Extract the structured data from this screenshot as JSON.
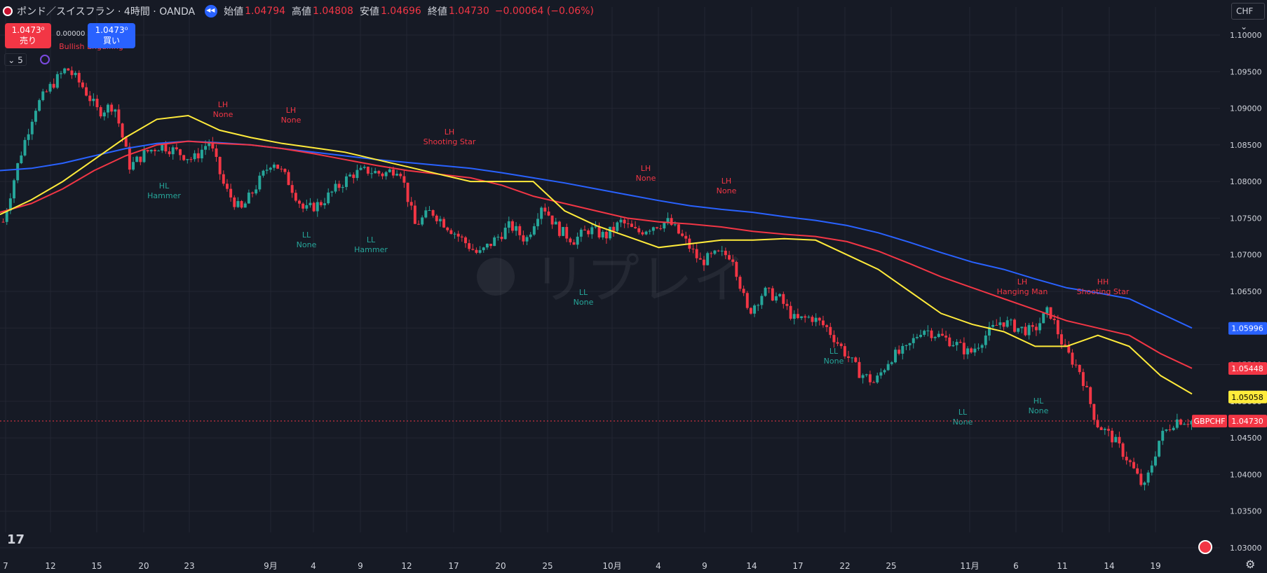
{
  "header": {
    "symbol": "ポンド／スイスフラン · 4時間 · OANDA",
    "open_label": "始値",
    "open": "1.04794",
    "high_label": "高値",
    "high": "1.04808",
    "low_label": "安値",
    "low": "1.04696",
    "close_label": "終値",
    "close": "1.04730",
    "change": "−0.00064 (−0.06%)"
  },
  "trade": {
    "sell_price": "1.0473⁰",
    "sell_label": "売り",
    "spread": "0.00000",
    "buy_price": "1.0473⁰",
    "buy_label": "買い"
  },
  "indicator_toggle": "5",
  "currency": "CHF",
  "watermark": "リプレイ",
  "price_axis": {
    "ticks": [
      "1.10000",
      "1.09500",
      "1.09000",
      "1.08500",
      "1.08000",
      "1.07500",
      "1.07000",
      "1.06500",
      "1.06000",
      "1.05500",
      "1.05000",
      "1.04500",
      "1.04000",
      "1.03500",
      "1.03000"
    ],
    "labels": [
      {
        "text": "1.05996",
        "value": 1.05996,
        "bg": "#2962ff",
        "fg": "#ffffff"
      },
      {
        "text": "1.05448",
        "value": 1.05448,
        "bg": "#f23645",
        "fg": "#ffffff"
      },
      {
        "text": "1.05058",
        "value": 1.05058,
        "bg": "#ffeb3b",
        "fg": "#000000"
      },
      {
        "text": "1.04730",
        "value": 1.0473,
        "bg": "#f23645",
        "fg": "#ffffff"
      }
    ],
    "symbol_tag": "GBPCHF"
  },
  "time_axis": {
    "labels": [
      "7",
      "12",
      "15",
      "20",
      "23",
      "9月",
      "4",
      "9",
      "12",
      "17",
      "20",
      "25",
      "10月",
      "4",
      "9",
      "14",
      "17",
      "22",
      "25",
      "11月",
      "6",
      "11",
      "14",
      "19"
    ]
  },
  "patterns": [
    {
      "lines": [
        "Bullish Engulfing"
      ],
      "color": "#f23645"
    },
    {
      "lines": [
        "LH",
        "None"
      ],
      "color": "#f23645"
    },
    {
      "lines": [
        "LH",
        "None"
      ],
      "color": "#f23645"
    },
    {
      "lines": [
        "LH",
        "Shooting Star"
      ],
      "color": "#f23645"
    },
    {
      "lines": [
        "LH",
        "None"
      ],
      "color": "#f23645"
    },
    {
      "lines": [
        "LH",
        "None"
      ],
      "color": "#f23645"
    },
    {
      "lines": [
        "LH",
        "Hanging Man"
      ],
      "color": "#f23645"
    },
    {
      "lines": [
        "HH",
        "Shooting Star"
      ],
      "color": "#f23645"
    },
    {
      "lines": [
        "HL",
        "Hammer"
      ],
      "color": "#26a69a"
    },
    {
      "lines": [
        "LL",
        "None"
      ],
      "color": "#26a69a"
    },
    {
      "lines": [
        "LL",
        "Hammer"
      ],
      "color": "#26a69a"
    },
    {
      "lines": [
        "LL",
        "None"
      ],
      "color": "#26a69a"
    },
    {
      "lines": [
        "LL",
        "None"
      ],
      "color": "#26a69a"
    },
    {
      "lines": [
        "LL",
        "None"
      ],
      "color": "#26a69a"
    },
    {
      "lines": [
        "HL",
        "None"
      ],
      "color": "#26a69a"
    }
  ],
  "colors": {
    "background": "#161a25",
    "grid": "#232632",
    "up": "#26a69a",
    "down": "#f23645",
    "ma_fast": "#ffeb3b",
    "ma_mid": "#f23645",
    "ma_slow": "#2962ff"
  },
  "chart_data": {
    "type": "candlestick",
    "ylim": [
      1.03,
      1.1
    ],
    "moving_averages": {
      "ma_fast": [
        1.0755,
        1.0775,
        1.08,
        1.083,
        1.086,
        1.0885,
        1.089,
        1.087,
        1.086,
        1.0852,
        1.0846,
        1.084,
        1.083,
        1.082,
        1.081,
        1.08,
        1.08,
        1.08,
        1.076,
        1.074,
        1.0725,
        1.071,
        1.0715,
        1.072,
        1.072,
        1.0722,
        1.072,
        1.07,
        1.068,
        1.065,
        1.062,
        1.0605,
        1.0595,
        1.0575,
        1.0575,
        1.059,
        1.0575,
        1.0535,
        1.051
      ],
      "ma_mid": [
        1.0758,
        1.077,
        1.079,
        1.0815,
        1.0835,
        1.085,
        1.0855,
        1.0852,
        1.085,
        1.0845,
        1.0838,
        1.083,
        1.0822,
        1.0815,
        1.081,
        1.0805,
        1.0795,
        1.078,
        1.077,
        1.076,
        1.075,
        1.0745,
        1.0742,
        1.0738,
        1.0732,
        1.0728,
        1.0725,
        1.0718,
        1.0705,
        1.0688,
        1.067,
        1.0655,
        1.064,
        1.0625,
        1.061,
        1.06,
        1.059,
        1.0565,
        1.0545
      ],
      "ma_slow": [
        1.0815,
        1.0818,
        1.0825,
        1.0835,
        1.0845,
        1.0852,
        1.0855,
        1.0853,
        1.085,
        1.0845,
        1.084,
        1.0835,
        1.083,
        1.0826,
        1.0822,
        1.0818,
        1.0812,
        1.0805,
        1.0798,
        1.079,
        1.0782,
        1.0774,
        1.0767,
        1.0762,
        1.0758,
        1.0752,
        1.0747,
        1.074,
        1.073,
        1.0717,
        1.0703,
        1.069,
        1.068,
        1.0667,
        1.0655,
        1.0648,
        1.064,
        1.062,
        1.06
      ]
    },
    "price_path": [
      1.0745,
      1.083,
      1.09,
      1.093,
      1.0955,
      1.093,
      1.0895,
      1.0905,
      1.082,
      1.084,
      1.085,
      1.084,
      1.083,
      1.0855,
      1.079,
      1.076,
      1.0795,
      1.083,
      1.08,
      1.076,
      1.077,
      1.079,
      1.081,
      1.0815,
      1.081,
      1.082,
      1.074,
      1.076,
      1.074,
      1.072,
      1.07,
      1.072,
      1.074,
      1.072,
      1.077,
      1.0735,
      1.072,
      1.0735,
      1.0725,
      1.0745,
      1.073,
      1.074,
      1.0745,
      1.072,
      1.069,
      1.07,
      1.07,
      1.062,
      1.065,
      1.064,
      1.061,
      1.0615,
      1.06,
      1.057,
      1.054,
      1.0525,
      1.056,
      1.057,
      1.06,
      1.059,
      1.058,
      1.0565,
      1.059,
      1.061,
      1.06,
      1.0595,
      1.0625,
      1.057,
      1.054,
      1.047,
      1.045,
      1.042,
      1.038,
      1.045,
      1.0475,
      1.0473
    ]
  }
}
